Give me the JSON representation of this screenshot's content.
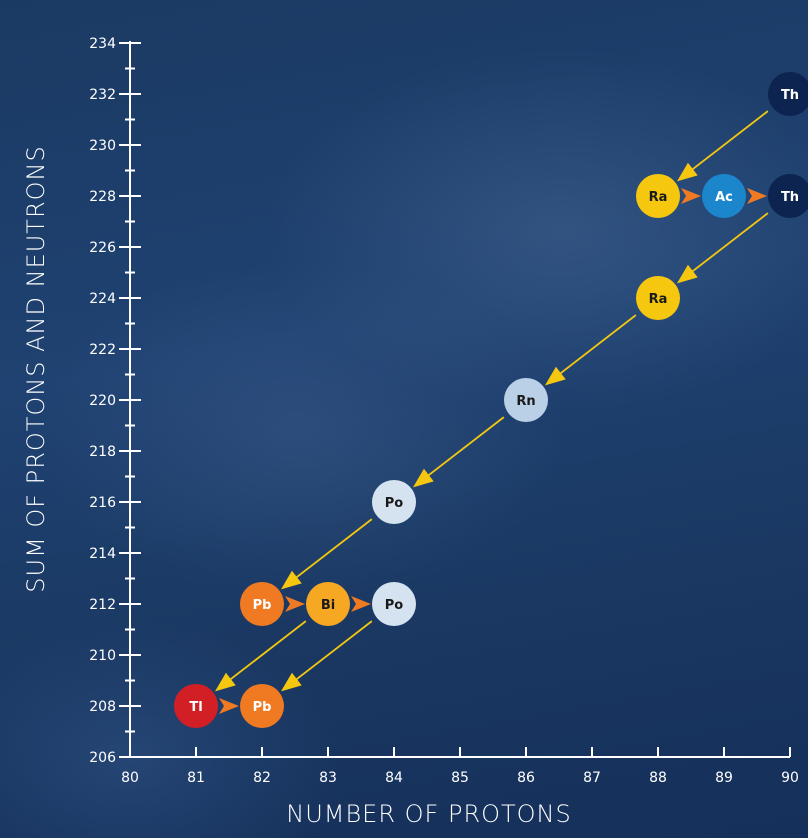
{
  "chart_data": {
    "type": "scatter",
    "title": "",
    "xlabel": "NUMBER OF PROTONS",
    "ylabel": "SUM OF PROTONS AND NEUTRONS",
    "xlim": [
      80,
      90
    ],
    "ylim": [
      206,
      234
    ],
    "x_ticks": [
      80,
      81,
      82,
      83,
      84,
      85,
      86,
      87,
      88,
      89,
      90
    ],
    "y_ticks": [
      206,
      208,
      210,
      212,
      214,
      216,
      218,
      220,
      222,
      224,
      226,
      228,
      230,
      232,
      234
    ],
    "grid": false,
    "points": [
      {
        "label": "Th",
        "x": 90,
        "y": 232,
        "color": "#0d2350",
        "text_color": "#ffffff"
      },
      {
        "label": "Ra",
        "x": 88,
        "y": 228,
        "color": "#f5c80f",
        "text_color": "#1a1a1a"
      },
      {
        "label": "Ac",
        "x": 89,
        "y": 228,
        "color": "#1c86cc",
        "text_color": "#ffffff"
      },
      {
        "label": "Th",
        "x": 90,
        "y": 228,
        "color": "#0d2350",
        "text_color": "#ffffff"
      },
      {
        "label": "Ra",
        "x": 88,
        "y": 224,
        "color": "#f5c80f",
        "text_color": "#1a1a1a"
      },
      {
        "label": "Rn",
        "x": 86,
        "y": 220,
        "color": "#b9d0e6",
        "text_color": "#1a1a1a"
      },
      {
        "label": "Po",
        "x": 84,
        "y": 216,
        "color": "#d5e3f0",
        "text_color": "#1a1a1a"
      },
      {
        "label": "Pb",
        "x": 82,
        "y": 212,
        "color": "#f07a22",
        "text_color": "#ffffff"
      },
      {
        "label": "Bi",
        "x": 83,
        "y": 212,
        "color": "#f7a823",
        "text_color": "#1a1a1a"
      },
      {
        "label": "Po",
        "x": 84,
        "y": 212,
        "color": "#d5e3f0",
        "text_color": "#1a1a1a"
      },
      {
        "label": "Tl",
        "x": 81,
        "y": 208,
        "color": "#d21f26",
        "text_color": "#ffffff"
      },
      {
        "label": "Pb",
        "x": 82,
        "y": 208,
        "color": "#f07a22",
        "text_color": "#ffffff"
      }
    ],
    "alpha_decays": [
      {
        "from": [
          90,
          232
        ],
        "to": [
          88,
          228
        ]
      },
      {
        "from": [
          90,
          228
        ],
        "to": [
          88,
          224
        ]
      },
      {
        "from": [
          88,
          224
        ],
        "to": [
          86,
          220
        ]
      },
      {
        "from": [
          86,
          220
        ],
        "to": [
          84,
          216
        ]
      },
      {
        "from": [
          84,
          216
        ],
        "to": [
          82,
          212
        ]
      },
      {
        "from": [
          83,
          212
        ],
        "to": [
          81,
          208
        ]
      },
      {
        "from": [
          84,
          212
        ],
        "to": [
          82,
          208
        ]
      }
    ],
    "beta_decays": [
      {
        "from": [
          88,
          228
        ],
        "to": [
          89,
          228
        ]
      },
      {
        "from": [
          89,
          228
        ],
        "to": [
          90,
          228
        ]
      },
      {
        "from": [
          82,
          212
        ],
        "to": [
          83,
          212
        ]
      },
      {
        "from": [
          83,
          212
        ],
        "to": [
          84,
          212
        ]
      },
      {
        "from": [
          81,
          208
        ],
        "to": [
          82,
          208
        ]
      }
    ],
    "colors": {
      "alpha_arrow": "#f5c80f",
      "beta_arrow": "#f07a22",
      "axis": "#ffffff"
    }
  }
}
